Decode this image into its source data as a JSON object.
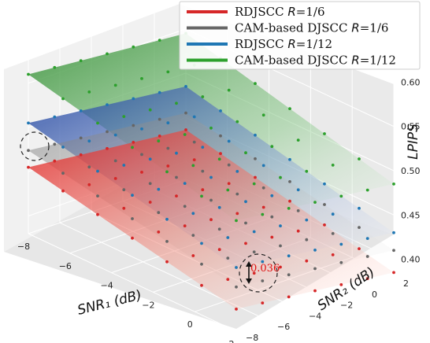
{
  "chart_data": {
    "type": "surface3d",
    "x_label": "SNR₁ (dB)",
    "y_label": "SNR₂ (dB)",
    "z_label": "LPIPS",
    "x_ticks": [
      "−8",
      "−6",
      "−4",
      "−2",
      "0",
      "2"
    ],
    "y_ticks": [
      "−8",
      "−6",
      "−4",
      "−2",
      "0",
      "2"
    ],
    "z_ticks": [
      "0.40",
      "0.45",
      "0.50",
      "0.55",
      "0.60"
    ],
    "x_range": [
      -8,
      2
    ],
    "y_range": [
      -8,
      2
    ],
    "z_range": [
      0.38,
      0.62
    ],
    "grid": true,
    "legend_position": "top-right",
    "series": [
      {
        "name_pre": "RDJSCC ",
        "name_R": "R",
        "name_post": "=1/6",
        "color": "#d62728",
        "corner_values": {
          "x_min_y_min": 0.455,
          "x_max_y_min": 0.405,
          "x_min_y_max": 0.436,
          "x_max_y_max": 0.385
        }
      },
      {
        "name_pre": "CAM-based DJSCC ",
        "name_R": "R",
        "name_post": "=1/6",
        "color": "#666666",
        "corner_values": {
          "x_min_y_min": 0.474,
          "x_max_y_min": 0.43,
          "x_min_y_max": 0.455,
          "x_max_y_max": 0.41
        }
      },
      {
        "name_pre": "RDJSCC ",
        "name_R": "R",
        "name_post": "=1/12",
        "color": "#1f77b4",
        "corner_values": {
          "x_min_y_min": 0.505,
          "x_max_y_min": 0.452,
          "x_min_y_max": 0.485,
          "x_max_y_max": 0.43
        }
      },
      {
        "name_pre": "CAM-based DJSCC ",
        "name_R": "R",
        "name_post": "=1/12",
        "color": "#2ca02c",
        "corner_values": {
          "x_min_y_min": 0.56,
          "x_max_y_min": 0.505,
          "x_min_y_max": 0.545,
          "x_max_y_max": 0.485
        }
      }
    ],
    "annotation": {
      "text": "0.036"
    }
  }
}
